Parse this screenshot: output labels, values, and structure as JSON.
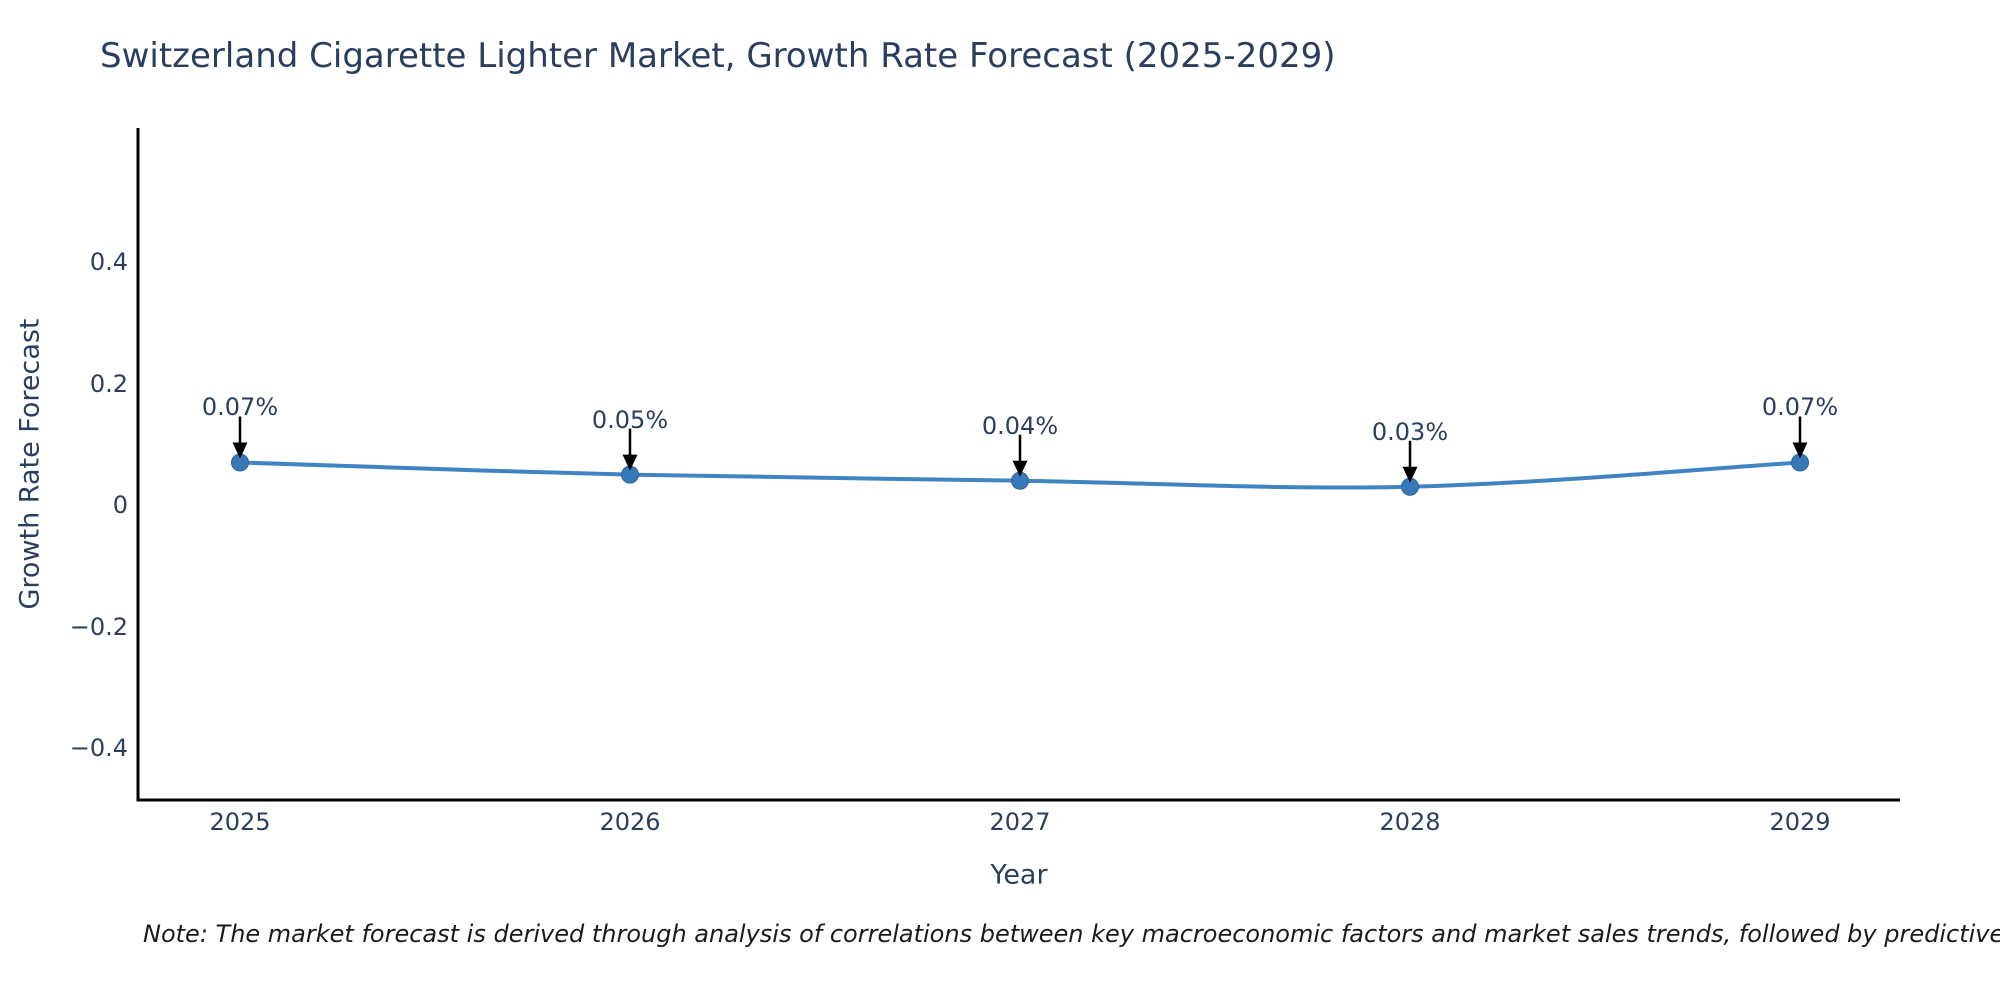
{
  "note": {
    "text": "Note: The market forecast is derived through analysis of correlations between key macroeconomic factors and market sales trends, followed by predictive modeling to project future sales"
  },
  "chart_data": {
    "type": "line",
    "title": "Switzerland Cigarette Lighter Market, Growth Rate Forecast (2025-2029)",
    "xlabel": "Year",
    "ylabel": "Growth Rate Forecast",
    "categories": [
      "2025",
      "2026",
      "2027",
      "2028",
      "2029"
    ],
    "series": [
      {
        "name": "Growth Rate Forecast",
        "values": [
          0.07,
          0.05,
          0.04,
          0.03,
          0.07
        ]
      }
    ],
    "point_labels": [
      "0.07%",
      "0.05%",
      "0.04%",
      "0.03%",
      "0.07%"
    ],
    "yticks": {
      "values": [
        0.4,
        0.2,
        0,
        -0.2,
        -0.4
      ],
      "labels": [
        "0.4",
        "0.2",
        "0",
        "−0.2",
        "−0.4"
      ]
    },
    "ylim": [
      -0.49,
      0.62
    ],
    "grid": false,
    "legend": "none",
    "line_shape": "spline",
    "colors": {
      "line": "#4184c4",
      "marker": "#3779b7",
      "marker_edge": "#2d639c",
      "axis_line": "#000000",
      "text": "#2a3f5f",
      "annotation_arrow": "#000000",
      "note_text": "#1a1a1a"
    }
  }
}
